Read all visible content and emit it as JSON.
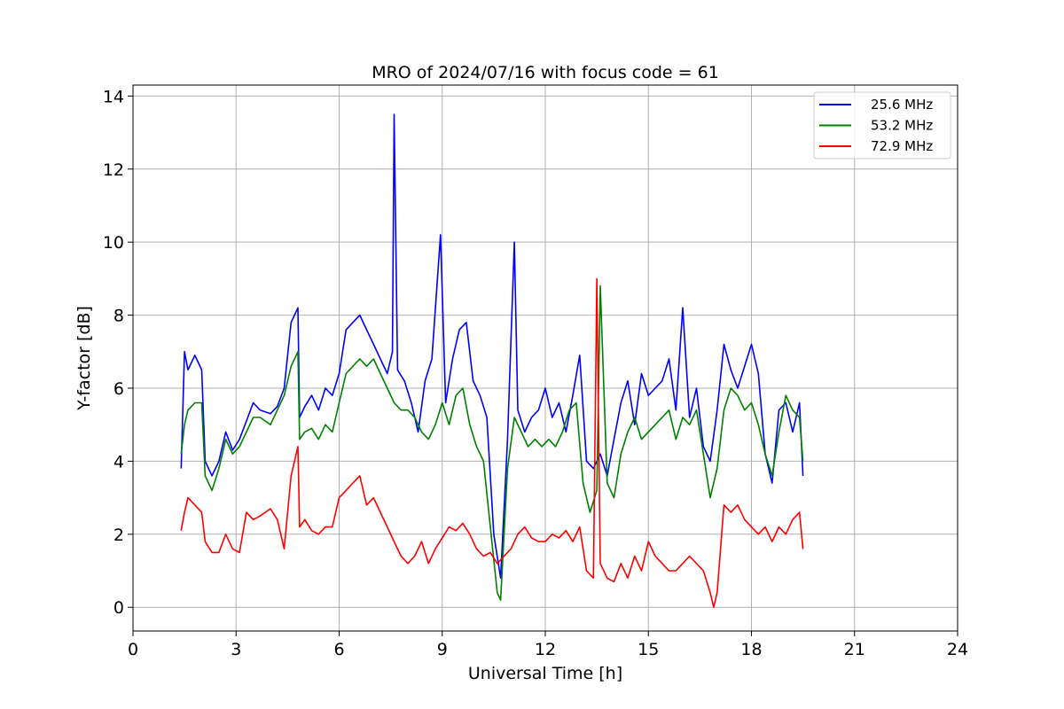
{
  "chart_data": {
    "type": "line",
    "title": "MRO of 2024/07/16 with focus code = 61",
    "xlabel": "Universal Time [h]",
    "ylabel": "Y-factor [dB]",
    "xlim": [
      0,
      24
    ],
    "ylim": [
      -0.65,
      14.3
    ],
    "xticks": [
      0,
      3,
      6,
      9,
      12,
      15,
      18,
      21,
      24
    ],
    "yticks": [
      0,
      2,
      4,
      6,
      8,
      10,
      12,
      14
    ],
    "grid": true,
    "legend_position": "top-right",
    "series": [
      {
        "name": "25.6 MHz",
        "color": "#0000ff",
        "x": [
          1.4,
          1.5,
          1.6,
          1.8,
          2.0,
          2.1,
          2.3,
          2.5,
          2.7,
          2.9,
          3.1,
          3.3,
          3.5,
          3.7,
          4.0,
          4.2,
          4.4,
          4.6,
          4.8,
          4.85,
          5.0,
          5.2,
          5.4,
          5.6,
          5.8,
          6.0,
          6.2,
          6.4,
          6.6,
          6.8,
          7.0,
          7.2,
          7.4,
          7.55,
          7.6,
          7.7,
          7.9,
          8.1,
          8.3,
          8.5,
          8.7,
          8.95,
          9.1,
          9.3,
          9.5,
          9.7,
          9.9,
          10.1,
          10.3,
          10.5,
          10.7,
          10.9,
          11.1,
          11.2,
          11.4,
          11.6,
          11.8,
          12.0,
          12.2,
          12.4,
          12.6,
          12.8,
          13.0,
          13.2,
          13.4,
          13.6,
          13.8,
          14.0,
          14.2,
          14.4,
          14.6,
          14.8,
          15.0,
          15.2,
          15.4,
          15.6,
          15.8,
          16.0,
          16.2,
          16.4,
          16.6,
          16.8,
          17.0,
          17.2,
          17.4,
          17.6,
          17.8,
          18.0,
          18.2,
          18.4,
          18.6,
          18.8,
          19.0,
          19.2,
          19.4,
          19.5
        ],
        "y": [
          3.8,
          7.0,
          6.5,
          6.9,
          6.5,
          4.0,
          3.6,
          4.0,
          4.8,
          4.3,
          4.6,
          5.1,
          5.6,
          5.4,
          5.3,
          5.5,
          6.0,
          7.8,
          8.2,
          5.2,
          5.5,
          5.8,
          5.4,
          6.0,
          5.8,
          6.4,
          7.6,
          7.8,
          8.0,
          7.6,
          7.2,
          6.8,
          6.4,
          7.0,
          13.5,
          6.5,
          6.2,
          5.6,
          4.8,
          6.2,
          6.8,
          10.2,
          5.6,
          6.8,
          7.6,
          7.8,
          6.2,
          5.8,
          5.2,
          2.0,
          0.8,
          4.6,
          10.0,
          5.4,
          4.8,
          5.2,
          5.4,
          6.0,
          5.2,
          5.6,
          4.8,
          5.8,
          6.9,
          4.0,
          3.8,
          4.2,
          3.6,
          4.6,
          5.6,
          6.2,
          5.0,
          6.4,
          5.8,
          6.0,
          6.2,
          6.8,
          5.4,
          8.2,
          5.2,
          6.0,
          4.4,
          4.0,
          5.4,
          7.2,
          6.5,
          6.0,
          6.6,
          7.2,
          6.4,
          4.2,
          3.4,
          5.4,
          5.6,
          4.8,
          5.6,
          3.6
        ]
      },
      {
        "name": "53.2 MHz",
        "color": "#008000",
        "x": [
          1.4,
          1.5,
          1.6,
          1.8,
          2.0,
          2.1,
          2.3,
          2.5,
          2.7,
          2.9,
          3.1,
          3.3,
          3.5,
          3.7,
          4.0,
          4.2,
          4.4,
          4.6,
          4.8,
          4.85,
          5.0,
          5.2,
          5.4,
          5.6,
          5.8,
          6.0,
          6.2,
          6.4,
          6.6,
          6.8,
          7.0,
          7.2,
          7.4,
          7.6,
          7.8,
          8.0,
          8.2,
          8.4,
          8.6,
          8.8,
          9.0,
          9.2,
          9.4,
          9.6,
          9.8,
          10.0,
          10.2,
          10.4,
          10.6,
          10.7,
          10.9,
          11.1,
          11.3,
          11.5,
          11.7,
          11.9,
          12.1,
          12.3,
          12.5,
          12.7,
          12.9,
          13.1,
          13.3,
          13.5,
          13.6,
          13.8,
          14.0,
          14.2,
          14.4,
          14.6,
          14.8,
          15.0,
          15.2,
          15.4,
          15.6,
          15.8,
          16.0,
          16.2,
          16.4,
          16.6,
          16.8,
          17.0,
          17.2,
          17.4,
          17.6,
          17.8,
          18.0,
          18.2,
          18.4,
          18.6,
          18.8,
          19.0,
          19.2,
          19.4,
          19.5
        ],
        "y": [
          4.2,
          5.0,
          5.4,
          5.6,
          5.6,
          3.6,
          3.2,
          3.8,
          4.6,
          4.2,
          4.4,
          4.8,
          5.2,
          5.2,
          5.0,
          5.4,
          5.8,
          6.6,
          7.0,
          4.6,
          4.8,
          4.9,
          4.6,
          5.0,
          4.8,
          5.6,
          6.4,
          6.6,
          6.8,
          6.6,
          6.8,
          6.4,
          6.0,
          5.6,
          5.4,
          5.4,
          5.2,
          4.8,
          4.6,
          5.0,
          5.6,
          5.0,
          5.8,
          6.0,
          5.0,
          4.4,
          4.0,
          2.2,
          0.4,
          0.2,
          3.8,
          5.2,
          4.8,
          4.4,
          4.6,
          4.4,
          4.6,
          4.4,
          4.8,
          5.4,
          5.6,
          3.4,
          2.6,
          3.2,
          8.8,
          3.4,
          3.0,
          4.2,
          4.8,
          5.2,
          4.6,
          4.8,
          5.0,
          5.2,
          5.4,
          4.6,
          5.2,
          5.0,
          5.4,
          4.2,
          3.0,
          3.8,
          5.4,
          6.0,
          5.8,
          5.4,
          5.6,
          5.0,
          4.2,
          3.6,
          4.8,
          5.8,
          5.4,
          5.2,
          4.0
        ]
      },
      {
        "name": "72.9 MHz",
        "color": "#ff0000",
        "x": [
          1.4,
          1.5,
          1.6,
          1.8,
          2.0,
          2.1,
          2.3,
          2.5,
          2.7,
          2.9,
          3.1,
          3.3,
          3.5,
          3.7,
          4.0,
          4.2,
          4.4,
          4.6,
          4.8,
          4.85,
          5.0,
          5.2,
          5.4,
          5.6,
          5.8,
          6.0,
          6.2,
          6.4,
          6.6,
          6.8,
          7.0,
          7.2,
          7.4,
          7.6,
          7.8,
          8.0,
          8.2,
          8.4,
          8.6,
          8.8,
          9.0,
          9.2,
          9.4,
          9.6,
          9.8,
          10.0,
          10.2,
          10.4,
          10.6,
          10.8,
          11.0,
          11.2,
          11.4,
          11.6,
          11.8,
          12.0,
          12.2,
          12.4,
          12.6,
          12.8,
          13.0,
          13.2,
          13.4,
          13.5,
          13.6,
          13.8,
          14.0,
          14.2,
          14.4,
          14.6,
          14.8,
          15.0,
          15.2,
          15.4,
          15.6,
          15.8,
          16.0,
          16.2,
          16.4,
          16.6,
          16.8,
          16.9,
          17.0,
          17.2,
          17.4,
          17.6,
          17.8,
          18.0,
          18.2,
          18.4,
          18.6,
          18.8,
          19.0,
          19.2,
          19.4,
          19.5
        ],
        "y": [
          2.1,
          2.6,
          3.0,
          2.8,
          2.6,
          1.8,
          1.5,
          1.5,
          2.0,
          1.6,
          1.5,
          2.6,
          2.4,
          2.5,
          2.7,
          2.4,
          1.6,
          3.6,
          4.4,
          2.2,
          2.4,
          2.1,
          2.0,
          2.2,
          2.2,
          3.0,
          3.2,
          3.4,
          3.6,
          2.8,
          3.0,
          2.6,
          2.2,
          1.8,
          1.4,
          1.2,
          1.4,
          1.8,
          1.2,
          1.6,
          1.9,
          2.2,
          2.1,
          2.3,
          2.0,
          1.6,
          1.4,
          1.5,
          1.2,
          1.4,
          1.6,
          2.0,
          2.2,
          1.9,
          1.8,
          1.8,
          2.0,
          1.9,
          2.1,
          1.8,
          2.2,
          1.0,
          0.8,
          9.0,
          1.2,
          0.8,
          0.7,
          1.2,
          0.8,
          1.4,
          1.0,
          1.8,
          1.4,
          1.2,
          1.0,
          1.0,
          1.2,
          1.4,
          1.2,
          1.0,
          0.4,
          0.0,
          0.4,
          2.8,
          2.6,
          2.8,
          2.4,
          2.2,
          2.0,
          2.2,
          1.8,
          2.2,
          2.0,
          2.4,
          2.6,
          1.6
        ]
      }
    ]
  }
}
